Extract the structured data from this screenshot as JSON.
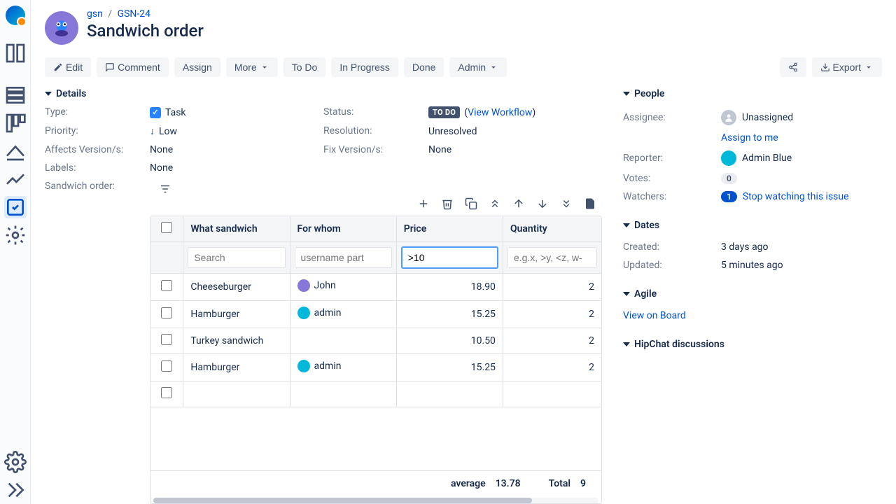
{
  "breadcrumb": {
    "project": "gsn",
    "key": "GSN-24"
  },
  "issue_title": "Sandwich order",
  "toolbar": {
    "edit": "Edit",
    "comment": "Comment",
    "assign": "Assign",
    "more": "More",
    "todo": "To Do",
    "inprogress": "In Progress",
    "done": "Done",
    "admin": "Admin",
    "export": "Export"
  },
  "sections": {
    "details": "Details",
    "people": "People",
    "dates": "Dates",
    "agile": "Agile",
    "hipchat": "HipChat discussions"
  },
  "details": {
    "type_label": "Type:",
    "type_value": "Task",
    "status_label": "Status:",
    "status_value": "TO DO",
    "view_workflow": "View Workflow",
    "priority_label": "Priority:",
    "priority_value": "Low",
    "resolution_label": "Resolution:",
    "resolution_value": "Unresolved",
    "affects_label": "Affects Version/s:",
    "affects_value": "None",
    "fix_label": "Fix Version/s:",
    "fix_value": "None",
    "labels_label": "Labels:",
    "labels_value": "None",
    "sandwich_label": "Sandwich order:"
  },
  "table": {
    "columns": {
      "what": "What sandwich",
      "whom": "For whom",
      "price": "Price",
      "qty": "Quantity"
    },
    "filters": {
      "what_placeholder": "Search",
      "whom_placeholder": "username part",
      "price_value": ">10",
      "qty_placeholder": "e.g.x, >y, <z, w-"
    },
    "rows": [
      {
        "what": "Cheeseburger",
        "whom": "John",
        "whom_class": "john",
        "price": "18.90",
        "qty": "2"
      },
      {
        "what": "Hamburger",
        "whom": "admin",
        "whom_class": "",
        "price": "15.25",
        "qty": "2"
      },
      {
        "what": "Turkey sandwich",
        "whom": "",
        "whom_class": "",
        "price": "10.50",
        "qty": "2"
      },
      {
        "what": "Hamburger",
        "whom": "admin",
        "whom_class": "",
        "price": "15.25",
        "qty": "2"
      }
    ],
    "footer": {
      "avg_label": "average",
      "avg_value": "13.78",
      "total_label": "Total",
      "total_value": "9"
    }
  },
  "people": {
    "assignee_label": "Assignee:",
    "assignee_value": "Unassigned",
    "assign_to_me": "Assign to me",
    "reporter_label": "Reporter:",
    "reporter_value": "Admin Blue",
    "votes_label": "Votes:",
    "votes_value": "0",
    "watchers_label": "Watchers:",
    "watchers_value": "1",
    "watchers_link": "Stop watching this issue"
  },
  "dates": {
    "created_label": "Created:",
    "created_value": "3 days ago",
    "updated_label": "Updated:",
    "updated_value": "5 minutes ago"
  },
  "agile": {
    "view_on_board": "View on Board"
  }
}
